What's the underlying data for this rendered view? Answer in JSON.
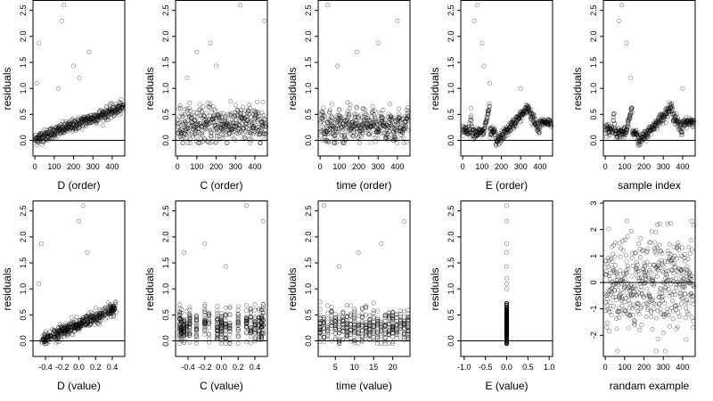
{
  "figure": {
    "panels": [
      {
        "id": "d-order",
        "xlabel": "D (order)",
        "ylabel": "residuals",
        "xlim": [
          -10,
          465
        ],
        "ylim": [
          -0.3,
          2.7
        ],
        "xticks": [
          0,
          100,
          200,
          300,
          400
        ],
        "yticks": [
          0.0,
          0.5,
          1.0,
          1.5,
          2.0,
          2.5
        ],
        "ytick_labels": [
          "0.0",
          "0.5",
          "1.0",
          "1.5",
          "2.0",
          "2.5"
        ],
        "hline": 0,
        "kind": "order",
        "pattern": "d_trend"
      },
      {
        "id": "c-order",
        "xlabel": "C (order)",
        "ylabel": "residuals",
        "xlim": [
          -10,
          465
        ],
        "ylim": [
          -0.3,
          2.7
        ],
        "xticks": [
          0,
          100,
          200,
          300,
          400
        ],
        "yticks": [
          0.0,
          0.5,
          1.0,
          1.5,
          2.0,
          2.5
        ],
        "ytick_labels": [
          "0.0",
          "0.5",
          "1.0",
          "1.5",
          "2.0",
          "2.5"
        ],
        "hline": 0,
        "kind": "order",
        "pattern": "c_band"
      },
      {
        "id": "time-order",
        "xlabel": "time (order)",
        "ylabel": "residuals",
        "xlim": [
          -10,
          465
        ],
        "ylim": [
          -0.3,
          2.7
        ],
        "xticks": [
          0,
          100,
          200,
          300,
          400
        ],
        "yticks": [
          0.0,
          0.5,
          1.0,
          1.5,
          2.0,
          2.5
        ],
        "ytick_labels": [
          "0.0",
          "0.5",
          "1.0",
          "1.5",
          "2.0",
          "2.5"
        ],
        "hline": 0,
        "kind": "order",
        "pattern": "time_band"
      },
      {
        "id": "e-order",
        "xlabel": "E (order)",
        "ylabel": "residuals",
        "xlim": [
          -10,
          465
        ],
        "ylim": [
          -0.3,
          2.7
        ],
        "xticks": [
          0,
          100,
          200,
          300,
          400
        ],
        "yticks": [
          0.0,
          0.5,
          1.0,
          1.5,
          2.0,
          2.5
        ],
        "ytick_labels": [
          "0.0",
          "0.5",
          "1.0",
          "1.5",
          "2.0",
          "2.5"
        ],
        "hline": 0,
        "kind": "order",
        "pattern": "sawtooth"
      },
      {
        "id": "sample-index",
        "xlabel": "sample index",
        "ylabel": "residuals",
        "xlim": [
          -10,
          465
        ],
        "ylim": [
          -0.3,
          2.7
        ],
        "xticks": [
          0,
          100,
          200,
          300,
          400
        ],
        "yticks": [
          0.0,
          0.5,
          1.0,
          1.5,
          2.0,
          2.5
        ],
        "ytick_labels": [
          "0.0",
          "0.5",
          "1.0",
          "1.5",
          "2.0",
          "2.5"
        ],
        "hline": 0,
        "kind": "order",
        "pattern": "sawtooth"
      },
      {
        "id": "d-value",
        "xlabel": "D (value)",
        "ylabel": "residuals",
        "xlim": [
          -0.55,
          0.55
        ],
        "ylim": [
          -0.3,
          2.7
        ],
        "xticks": [
          -0.4,
          -0.2,
          0.0,
          0.2,
          0.4
        ],
        "xtick_labels": [
          "-0.4",
          "-0.2",
          "0.0",
          "0.2",
          "0.4"
        ],
        "yticks": [
          0.0,
          0.5,
          1.0,
          1.5,
          2.0,
          2.5
        ],
        "ytick_labels": [
          "0.0",
          "0.5",
          "1.0",
          "1.5",
          "2.0",
          "2.5"
        ],
        "hline": 0,
        "kind": "value",
        "pattern": "d_value"
      },
      {
        "id": "c-value",
        "xlabel": "C (value)",
        "ylabel": "residuals",
        "xlim": [
          -0.55,
          0.55
        ],
        "ylim": [
          -0.3,
          2.7
        ],
        "xticks": [
          -0.4,
          -0.2,
          0.0,
          0.2,
          0.4
        ],
        "xtick_labels": [
          "-0.4",
          "-0.2",
          "0.0",
          "0.2",
          "0.4"
        ],
        "yticks": [
          0.0,
          0.5,
          1.0,
          1.5,
          2.0,
          2.5
        ],
        "ytick_labels": [
          "0.0",
          "0.5",
          "1.0",
          "1.5",
          "2.0",
          "2.5"
        ],
        "hline": 0,
        "kind": "value",
        "pattern": "c_value"
      },
      {
        "id": "time-value",
        "xlabel": "time (value)",
        "ylabel": "residuals",
        "xlim": [
          0.5,
          24.5
        ],
        "ylim": [
          -0.3,
          2.7
        ],
        "xticks": [
          5,
          10,
          15,
          20
        ],
        "xtick_labels": [
          "5",
          "10",
          "15",
          "20"
        ],
        "yticks": [
          0.0,
          0.5,
          1.0,
          1.5,
          2.0,
          2.5
        ],
        "ytick_labels": [
          "0.0",
          "0.5",
          "1.0",
          "1.5",
          "2.0",
          "2.5"
        ],
        "hline": 0,
        "kind": "value",
        "pattern": "time_value"
      },
      {
        "id": "e-value",
        "xlabel": "E (value)",
        "ylabel": "residuals",
        "xlim": [
          -1.08,
          1.08
        ],
        "ylim": [
          -0.3,
          2.7
        ],
        "xticks": [
          -1.0,
          -0.5,
          0.0,
          0.5,
          1.0
        ],
        "xtick_labels": [
          "-1.0",
          "-0.5",
          "0.0",
          "0.5",
          "1.0"
        ],
        "yticks": [
          0.0,
          0.5,
          1.0,
          1.5,
          2.0,
          2.5
        ],
        "ytick_labels": [
          "0.0",
          "0.5",
          "1.0",
          "1.5",
          "2.0",
          "2.5"
        ],
        "hline": 0,
        "kind": "value",
        "pattern": "e_value"
      },
      {
        "id": "random-example",
        "xlabel": "randam example",
        "ylabel": "residuals",
        "xlim": [
          -10,
          465
        ],
        "ylim": [
          -2.8,
          3.1
        ],
        "xticks": [
          0,
          100,
          200,
          300,
          400
        ],
        "yticks": [
          -2,
          -1,
          0,
          1,
          2,
          3
        ],
        "ytick_labels": [
          "-2",
          "-1",
          "0",
          "1",
          "2",
          "3"
        ],
        "hline": 0,
        "kind": "order",
        "pattern": "random"
      }
    ]
  },
  "chart_data": [
    {
      "type": "scatter",
      "xlabel": "D (order)",
      "ylabel": "residuals",
      "xlim": [
        -10,
        465
      ],
      "ylim": [
        -0.3,
        2.7
      ],
      "n_points": 460,
      "description": "residuals increase roughly linearly with order from ~0.0 to ~0.65; a few outliers up to ~2.6",
      "outliers": [
        [
          10,
          1.1
        ],
        [
          20,
          1.87
        ],
        [
          120,
          1.0
        ],
        [
          140,
          2.3
        ],
        [
          150,
          2.6
        ],
        [
          200,
          1.43
        ],
        [
          230,
          1.2
        ],
        [
          280,
          1.7
        ]
      ]
    },
    {
      "type": "scatter",
      "xlabel": "C (order)",
      "ylabel": "residuals",
      "xlim": [
        -10,
        465
      ],
      "ylim": [
        -0.3,
        2.7
      ],
      "n_points": 460,
      "description": "residuals scattered in a band 0.0-0.7 with no trend; outliers to ~2.6",
      "outliers": [
        [
          50,
          1.2
        ],
        [
          100,
          1.7
        ],
        [
          170,
          1.87
        ],
        [
          200,
          1.43
        ],
        [
          325,
          2.6
        ],
        [
          450,
          2.3
        ]
      ]
    },
    {
      "type": "scatter",
      "xlabel": "time (order)",
      "ylabel": "residuals",
      "xlim": [
        -10,
        465
      ],
      "ylim": [
        -0.3,
        2.7
      ],
      "n_points": 460,
      "description": "residuals in band 0.0-0.7 with short oscillating runs; outliers to ~2.6",
      "outliers": [
        [
          40,
          2.6
        ],
        [
          90,
          1.43
        ],
        [
          190,
          1.7
        ],
        [
          300,
          1.87
        ],
        [
          400,
          2.3
        ]
      ]
    },
    {
      "type": "scatter",
      "xlabel": "E (order)",
      "ylabel": "residuals",
      "xlim": [
        -10,
        465
      ],
      "ylim": [
        -0.3,
        2.7
      ],
      "n_points": 460,
      "description": "sawtooth pattern: low plateau near 0.2, rising ramps up to ~0.65 then dropping, plateau near 0.35 at the end",
      "outliers": [
        [
          60,
          2.3
        ],
        [
          75,
          2.6
        ],
        [
          100,
          1.87
        ],
        [
          110,
          1.43
        ],
        [
          140,
          1.1
        ],
        [
          300,
          1.0
        ]
      ]
    },
    {
      "type": "scatter",
      "xlabel": "sample index",
      "ylabel": "residuals",
      "xlim": [
        -10,
        465
      ],
      "ylim": [
        -0.3,
        2.7
      ],
      "n_points": 460,
      "description": "same sawtooth pattern as E (order)",
      "outliers": [
        [
          70,
          2.3
        ],
        [
          85,
          2.6
        ],
        [
          110,
          1.87
        ],
        [
          130,
          1.2
        ],
        [
          400,
          1.0
        ]
      ]
    },
    {
      "type": "scatter",
      "xlabel": "D (value)",
      "ylabel": "residuals",
      "xlim": [
        -0.55,
        0.55
      ],
      "ylim": [
        -0.3,
        2.7
      ],
      "n_points": 460,
      "description": "residuals increase with D value from ~0.0 at -0.45 to ~0.65 at 0.45",
      "outliers": [
        [
          -0.48,
          1.1
        ],
        [
          -0.45,
          1.87
        ],
        [
          0.0,
          2.3
        ],
        [
          0.05,
          2.6
        ],
        [
          0.1,
          1.7
        ]
      ]
    },
    {
      "type": "scatter",
      "xlabel": "C (value)",
      "ylabel": "residuals",
      "xlim": [
        -0.55,
        0.55
      ],
      "ylim": [
        -0.3,
        2.7
      ],
      "n_points": 460,
      "description": "vertical stripes at discrete C values, residuals 0.0-0.7",
      "outliers": [
        [
          -0.45,
          1.7
        ],
        [
          -0.2,
          1.87
        ],
        [
          0.05,
          1.43
        ],
        [
          0.3,
          2.6
        ],
        [
          0.5,
          2.3
        ]
      ]
    },
    {
      "type": "scatter",
      "xlabel": "time (value)",
      "ylabel": "residuals",
      "xlim": [
        0.5,
        24.5
      ],
      "ylim": [
        -0.3,
        2.7
      ],
      "n_points": 460,
      "description": "vertical stripes at integer time values 1-24, residuals 0.0-0.7",
      "outliers": [
        [
          2,
          2.6
        ],
        [
          6,
          1.43
        ],
        [
          11,
          1.7
        ],
        [
          17,
          1.87
        ],
        [
          23,
          2.3
        ]
      ]
    },
    {
      "type": "scatter",
      "xlabel": "E (value)",
      "ylabel": "residuals",
      "xlim": [
        -1.08,
        1.08
      ],
      "ylim": [
        -0.3,
        2.7
      ],
      "n_points": 460,
      "description": "all points at E = 0.0, residuals from -0.05 to 0.7 plus outliers to 2.6"
    },
    {
      "type": "scatter",
      "xlabel": "randam example",
      "ylabel": "residuals",
      "xlim": [
        -10,
        465
      ],
      "ylim": [
        -2.8,
        3.1
      ],
      "n_points": 460,
      "description": "random noise around 0, mostly within -2.5 to 2.5"
    }
  ]
}
